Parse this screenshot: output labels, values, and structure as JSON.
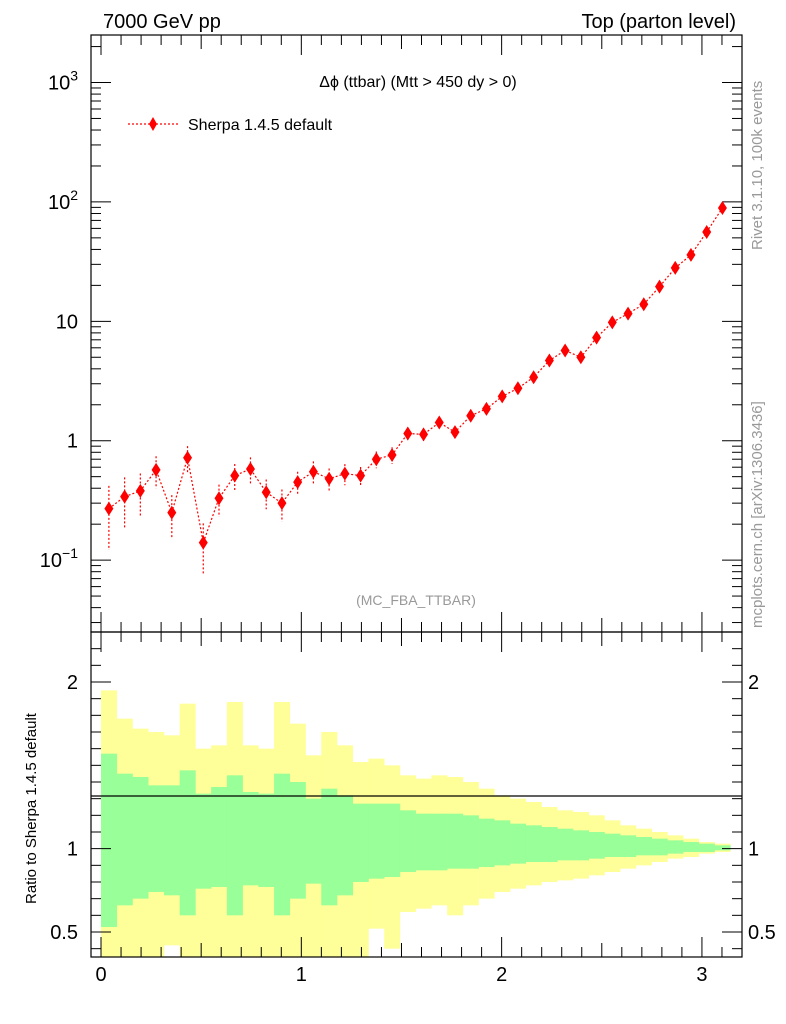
{
  "header": {
    "left": "7000 GeV pp",
    "right": "Top (parton level)"
  },
  "side_labels": {
    "rivet": "Rivet 3.1.10,  100k events",
    "mcplots": "mcplots.cern.ch [arXiv:1306.3436]"
  },
  "chart_data": [
    {
      "type": "scatter",
      "title": "Δϕ (ttbar) (Mtt > 450 dy > 0)",
      "analysis_tag": "(MC_FBA_TTBAR)",
      "legend_placement": "top-left",
      "xlim": [
        -0.05,
        3.2
      ],
      "ylim": [
        0.025,
        2500
      ],
      "ylog": true,
      "yticks": [
        {
          "value": 1000,
          "base": "10",
          "exp": "3"
        },
        {
          "value": 100,
          "base": "10",
          "exp": "2"
        },
        {
          "value": 10,
          "base": "10",
          "exp": ""
        },
        {
          "value": 1,
          "base": "1",
          "exp": ""
        },
        {
          "value": 0.1,
          "base": "10",
          "exp": "−1"
        }
      ],
      "series": [
        {
          "name": "Sherpa 1.4.5 default",
          "color": "#ff0000",
          "x": [
            0.0393,
            0.1178,
            0.1963,
            0.2749,
            0.3534,
            0.432,
            0.5105,
            0.589,
            0.6676,
            0.7461,
            0.8247,
            0.9032,
            0.9817,
            1.0603,
            1.1388,
            1.2174,
            1.2959,
            1.3744,
            1.453,
            1.5315,
            1.6101,
            1.6886,
            1.7671,
            1.8457,
            1.9242,
            2.0028,
            2.0813,
            2.1598,
            2.2384,
            2.3169,
            2.3955,
            2.474,
            2.5525,
            2.6311,
            2.7096,
            2.7882,
            2.8667,
            2.9452,
            3.0238,
            3.1023
          ],
          "y": [
            0.27,
            0.34,
            0.38,
            0.57,
            0.25,
            0.72,
            0.14,
            0.33,
            0.51,
            0.58,
            0.37,
            0.3,
            0.45,
            0.55,
            0.48,
            0.53,
            0.51,
            0.7,
            0.76,
            1.15,
            1.13,
            1.42,
            1.18,
            1.62,
            1.85,
            2.35,
            2.75,
            3.4,
            4.7,
            5.7,
            5.0,
            7.3,
            9.8,
            11.6,
            13.9,
            19.5,
            28,
            36,
            56,
            89
          ],
          "yerr_rel": [
            0.55,
            0.45,
            0.4,
            0.3,
            0.4,
            0.25,
            0.45,
            0.3,
            0.25,
            0.25,
            0.28,
            0.3,
            0.22,
            0.22,
            0.22,
            0.2,
            0.18,
            0.16,
            0.16,
            0.12,
            0.12,
            0.1,
            0.11,
            0.09,
            0.08,
            0.07,
            0.07,
            0.06,
            0.05,
            0.05,
            0.05,
            0.04,
            0.03,
            0.03,
            0.03,
            0.03,
            0.02,
            0.02,
            0.015,
            0.01
          ]
        }
      ]
    },
    {
      "type": "area",
      "ylabel": "Ratio to Sherpa 1.4.5 default",
      "xlim": [
        -0.05,
        3.2
      ],
      "ylim": [
        0.35,
        2.3
      ],
      "xticks": [
        0,
        1,
        2,
        3
      ],
      "xtick_labels": [
        "0",
        "1",
        "2",
        "3"
      ],
      "yticks": [
        0.5,
        1,
        2
      ],
      "ytick_labels": [
        "0.5",
        "1",
        "2"
      ],
      "reference_line": 1,
      "bin_edges": [
        0,
        0.0785,
        0.1571,
        0.2356,
        0.3142,
        0.3927,
        0.4712,
        0.5498,
        0.6283,
        0.7069,
        0.7854,
        0.8639,
        0.9425,
        1.021,
        1.0996,
        1.1781,
        1.2566,
        1.3352,
        1.4137,
        1.4923,
        1.5708,
        1.6493,
        1.7279,
        1.8064,
        1.885,
        1.9635,
        2.042,
        2.1206,
        2.1991,
        2.2777,
        2.3562,
        2.4347,
        2.5133,
        2.5918,
        2.6704,
        2.7489,
        2.8274,
        2.906,
        2.9845,
        3.0631,
        3.1416
      ],
      "bands": [
        {
          "name": "yellow",
          "color": "#ffff99",
          "upper": [
            1.95,
            1.78,
            1.72,
            1.7,
            1.68,
            1.87,
            1.6,
            1.62,
            1.88,
            1.62,
            1.6,
            1.88,
            1.75,
            1.56,
            1.7,
            1.62,
            1.52,
            1.54,
            1.5,
            1.44,
            1.42,
            1.44,
            1.43,
            1.4,
            1.36,
            1.32,
            1.3,
            1.28,
            1.25,
            1.23,
            1.22,
            1.2,
            1.17,
            1.14,
            1.12,
            1.1,
            1.08,
            1.06,
            1.04,
            1.03
          ],
          "lower": [
            0.0,
            0.0,
            0.0,
            0.0,
            0.42,
            0.0,
            0.0,
            0.0,
            0.0,
            0.0,
            0.0,
            0.0,
            0.0,
            0.0,
            0.0,
            0.0,
            0.35,
            0.52,
            0.4,
            0.62,
            0.64,
            0.66,
            0.6,
            0.66,
            0.7,
            0.74,
            0.76,
            0.78,
            0.8,
            0.81,
            0.82,
            0.84,
            0.86,
            0.88,
            0.9,
            0.92,
            0.94,
            0.95,
            0.97,
            0.98
          ]
        },
        {
          "name": "green",
          "color": "#99ff99",
          "upper": [
            1.57,
            1.45,
            1.43,
            1.38,
            1.38,
            1.47,
            1.33,
            1.37,
            1.44,
            1.34,
            1.33,
            1.45,
            1.4,
            1.3,
            1.36,
            1.32,
            1.27,
            1.27,
            1.27,
            1.23,
            1.21,
            1.21,
            1.21,
            1.2,
            1.18,
            1.17,
            1.15,
            1.14,
            1.13,
            1.12,
            1.11,
            1.1,
            1.09,
            1.08,
            1.07,
            1.06,
            1.05,
            1.04,
            1.03,
            1.02
          ],
          "lower": [
            0.53,
            0.66,
            0.7,
            0.74,
            0.72,
            0.6,
            0.76,
            0.77,
            0.6,
            0.78,
            0.77,
            0.6,
            0.7,
            0.79,
            0.66,
            0.72,
            0.8,
            0.82,
            0.83,
            0.86,
            0.87,
            0.87,
            0.88,
            0.88,
            0.89,
            0.9,
            0.91,
            0.92,
            0.92,
            0.93,
            0.93,
            0.94,
            0.95,
            0.95,
            0.96,
            0.96,
            0.97,
            0.98,
            0.98,
            0.99
          ]
        }
      ]
    }
  ]
}
